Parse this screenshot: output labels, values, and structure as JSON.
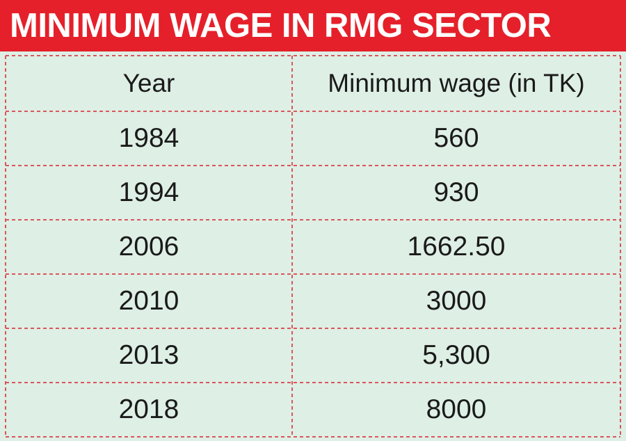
{
  "title": "MINIMUM WAGE IN RMG SECTOR",
  "colors": {
    "title_background": "#e5202a",
    "title_text": "#ffffff",
    "table_background": "#deefe5",
    "grid_lines": "#d9565c",
    "cell_text": "#1a1a1a"
  },
  "chart_data": {
    "type": "table",
    "title": "MINIMUM WAGE IN RMG SECTOR",
    "columns": [
      "Year",
      "Minimum wage (in TK)"
    ],
    "rows": [
      [
        "1984",
        "560"
      ],
      [
        "1994",
        "930"
      ],
      [
        "2006",
        "1662.50"
      ],
      [
        "2010",
        "3000"
      ],
      [
        "2013",
        "5,300"
      ],
      [
        "2018",
        "8000"
      ]
    ]
  }
}
